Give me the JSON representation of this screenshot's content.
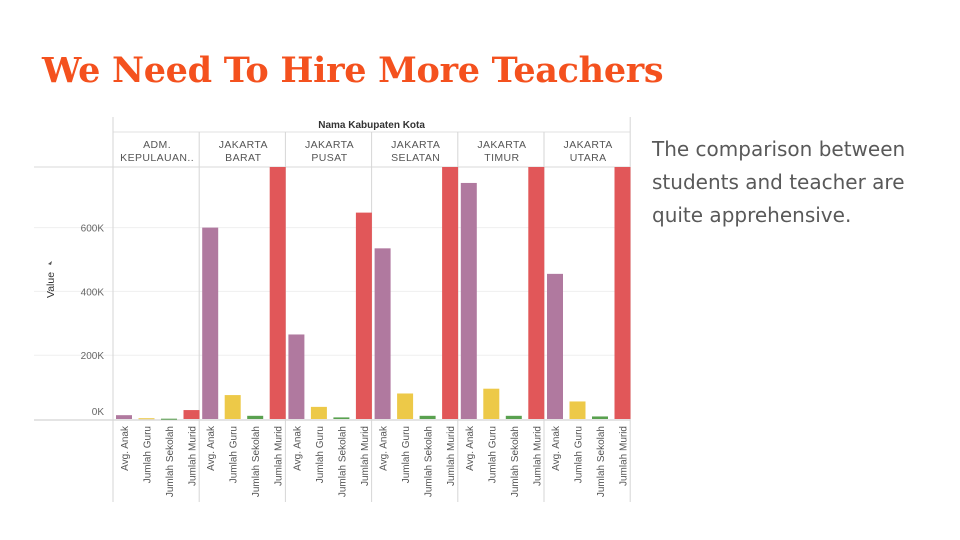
{
  "slide": {
    "title": "We Need To Hire More Teachers",
    "body": "The comparison between students and teacher are quite apprehensive."
  },
  "chart_data": {
    "type": "bar",
    "title": "Nama Kabupaten Kota",
    "ylabel": "Value",
    "ylim": [
      0,
      790000
    ],
    "yticks": [
      {
        "value": 0,
        "label": "0K"
      },
      {
        "value": 200000,
        "label": "200K"
      },
      {
        "value": 400000,
        "label": "400K"
      },
      {
        "value": 600000,
        "label": "600K"
      }
    ],
    "grid": true,
    "categories": [
      "Avg. Anak",
      "Jumlah Guru",
      "Jumlah Sekolah",
      "Jumlah Murid"
    ],
    "category_colors": [
      "#b0799f",
      "#edc948",
      "#59a14f",
      "#e15759"
    ],
    "panels": [
      {
        "label_lines": [
          "ADM.",
          "KEPULAUAN.."
        ],
        "values": [
          12000,
          2500,
          1000,
          28000
        ]
      },
      {
        "label_lines": [
          "JAKARTA",
          "BARAT"
        ],
        "values": [
          600000,
          75000,
          10000,
          790000
        ]
      },
      {
        "label_lines": [
          "JAKARTA",
          "PUSAT"
        ],
        "values": [
          265000,
          38000,
          5000,
          647000
        ]
      },
      {
        "label_lines": [
          "JAKARTA",
          "SELATAN"
        ],
        "values": [
          535000,
          80000,
          10000,
          790000
        ]
      },
      {
        "label_lines": [
          "JAKARTA",
          "TIMUR"
        ],
        "values": [
          740000,
          95000,
          10000,
          790000
        ]
      },
      {
        "label_lines": [
          "JAKARTA",
          "UTARA"
        ],
        "values": [
          455000,
          55000,
          8000,
          790000
        ]
      }
    ]
  }
}
